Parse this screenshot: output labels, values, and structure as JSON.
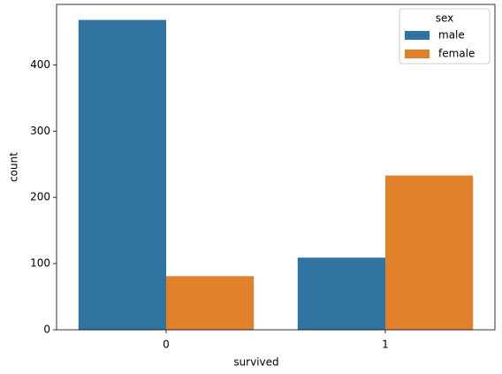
{
  "chart_data": {
    "type": "bar",
    "x_label": "survived",
    "y_label": "count",
    "categories": [
      "0",
      "1"
    ],
    "series": [
      {
        "name": "male",
        "color": "#3274a1",
        "values": [
          468,
          109
        ]
      },
      {
        "name": "female",
        "color": "#e1812c",
        "values": [
          81,
          233
        ]
      }
    ],
    "ylim": [
      0,
      491.4
    ],
    "yticks": [
      0,
      100,
      200,
      300,
      400
    ],
    "legend_title": "sex",
    "legend": "upper right"
  }
}
